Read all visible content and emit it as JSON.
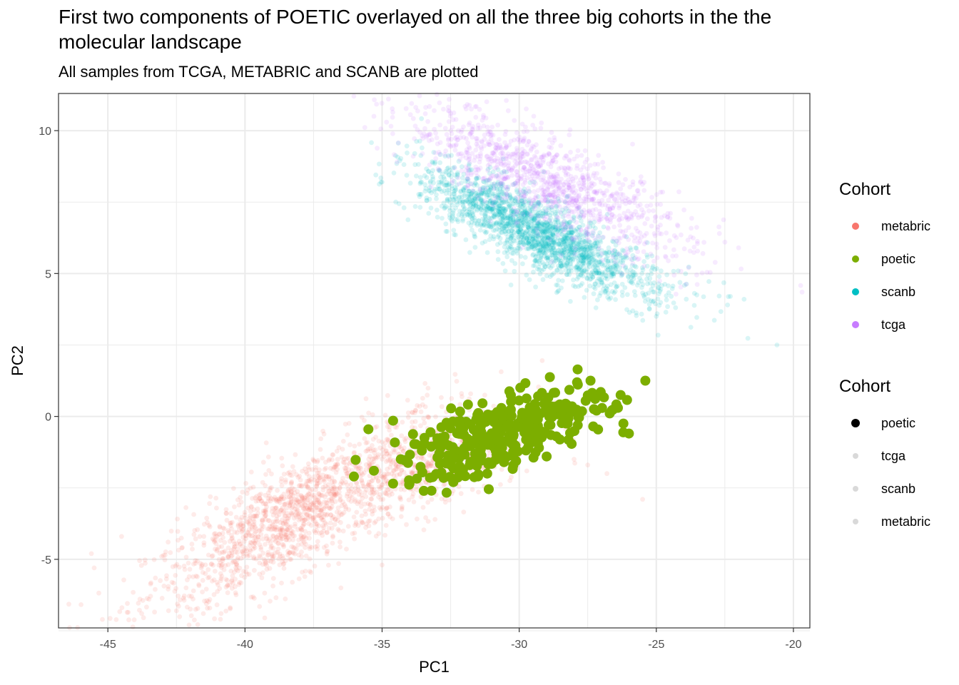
{
  "chart_data": {
    "type": "scatter",
    "title": "First two components of POETIC overlayed on all the three big cohorts in the the molecular landscape",
    "subtitle": "All samples from TCGA, METABRIC and SCANB are plotted",
    "xlabel": "PC1",
    "ylabel": "PC2",
    "xlim": [
      -46.8,
      -19.4
    ],
    "ylim": [
      -7.4,
      11.3
    ],
    "xticks": [
      -45,
      -40,
      -35,
      -30,
      -25,
      -20
    ],
    "yticks": [
      -5,
      0,
      5,
      10
    ],
    "grid": true,
    "legend_position": "right",
    "series": [
      {
        "name": "metabric",
        "color": "#F8766D",
        "alpha": 0.15,
        "clusters": [
          {
            "center": [
              -38.0,
              -3.4
            ],
            "sd": [
              2.8,
              0.95
            ],
            "slope": 0.52,
            "n": 1500
          },
          {
            "center": [
              -32.5,
              -1.6
            ],
            "sd": [
              1.6,
              0.75
            ],
            "slope": 0.35,
            "n": 400
          }
        ],
        "extra_points": [
          [
            -45.6,
            -4.8
          ],
          [
            -45.5,
            -5.3
          ],
          [
            -44.5,
            -4.2
          ],
          [
            -43.5,
            -6.4
          ],
          [
            -42.5,
            -6.8
          ],
          [
            -35.0,
            -5.2
          ],
          [
            -36.5,
            -6.0
          ],
          [
            -28.0,
            -1.5
          ],
          [
            -27.5,
            -1.7
          ],
          [
            -26.8,
            -2.0
          ],
          [
            -25.5,
            -2.9
          ],
          [
            -34.0,
            -2.2
          ]
        ]
      },
      {
        "name": "scanb",
        "color": "#00BFC4",
        "alpha": 0.15,
        "clusters": [
          {
            "center": [
              -29.8,
              6.7
            ],
            "sd": [
              1.9,
              0.6
            ],
            "slope": -0.42,
            "n": 1600
          },
          {
            "center": [
              -27.0,
              5.1
            ],
            "sd": [
              1.8,
              0.5
            ],
            "slope": -0.25,
            "n": 300
          }
        ],
        "extra_points": [
          [
            -33.2,
            8.5
          ],
          [
            -34.5,
            7.5
          ],
          [
            -34.2,
            7.3
          ],
          [
            -30.3,
            4.6
          ],
          [
            -22.3,
            4.2
          ],
          [
            -22.4,
            3.9
          ],
          [
            -21.8,
            4.1
          ],
          [
            -20.6,
            2.5
          ],
          [
            -25.0,
            3.5
          ],
          [
            -27.2,
            3.8
          ]
        ]
      },
      {
        "name": "tcga",
        "color": "#C77CFF",
        "alpha": 0.15,
        "clusters": [
          {
            "center": [
              -29.0,
              8.2
            ],
            "sd": [
              2.6,
              0.8
            ],
            "slope": -0.42,
            "n": 1100
          }
        ],
        "extra_points": [
          [
            -35.3,
            10.5
          ],
          [
            -33.1,
            10.7
          ],
          [
            -32.5,
            10.6
          ],
          [
            -22.7,
            6.4
          ],
          [
            -22.5,
            6.1
          ],
          [
            -22.0,
            5.9
          ],
          [
            -23.3,
            5.7
          ]
        ]
      },
      {
        "name": "poetic",
        "color": "#7CAE00",
        "alpha": 1.0,
        "clusters": [
          {
            "center": [
              -30.5,
              -0.6
            ],
            "sd": [
              1.8,
              0.6
            ],
            "slope": 0.3,
            "n": 320
          }
        ],
        "extra_points": [
          [
            -35.5,
            -0.45
          ],
          [
            -34.6,
            -0.15
          ],
          [
            -25.4,
            1.25
          ],
          [
            -27.4,
            1.25
          ],
          [
            -26.3,
            0.75
          ],
          [
            -26.0,
            -0.6
          ],
          [
            -26.4,
            0.3
          ],
          [
            -26.2,
            -0.25
          ],
          [
            -33.2,
            -2.6
          ],
          [
            -34.6,
            -2.35
          ],
          [
            -34.0,
            -2.35
          ],
          [
            -35.3,
            -1.9
          ],
          [
            -31.5,
            -2.1
          ],
          [
            -27.3,
            -0.35
          ],
          [
            -29.0,
            -1.4
          ]
        ]
      }
    ]
  },
  "legend": {
    "color_title": "Cohort",
    "color_items": [
      {
        "label": "metabric",
        "color": "#F8766D"
      },
      {
        "label": "poetic",
        "color": "#7CAE00"
      },
      {
        "label": "scanb",
        "color": "#00BFC4"
      },
      {
        "label": "tcga",
        "color": "#C77CFF"
      }
    ],
    "alpha_title": "Cohort",
    "alpha_items": [
      {
        "label": "poetic",
        "alpha": 1.0
      },
      {
        "label": "tcga",
        "alpha": 0.15
      },
      {
        "label": "scanb",
        "alpha": 0.15
      },
      {
        "label": "metabric",
        "alpha": 0.15
      }
    ]
  }
}
